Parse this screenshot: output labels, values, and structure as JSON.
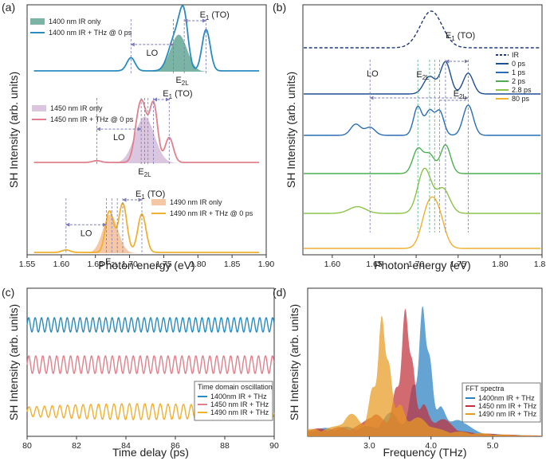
{
  "panel_labels": {
    "a": "(a)",
    "b": "(b)",
    "c": "(c)",
    "d": "(d)"
  },
  "chart_data": [
    {
      "id": "a",
      "type": "line",
      "xlabel": "Photon energy (eV)",
      "ylabel": "SH Intensity (arb. units)",
      "xlim": [
        1.55,
        1.9
      ],
      "xticks": [
        "1.55",
        "1.60",
        "1.65",
        "1.70",
        "1.75",
        "1.80",
        "1.85",
        "1.90"
      ],
      "xtick_values": [
        1.55,
        1.6,
        1.65,
        1.7,
        1.75,
        1.8,
        1.85,
        1.9
      ],
      "groups": [
        {
          "legend_fill": "1400 nm IR only",
          "legend_line": "1400 nm IR + THz @ 0 ps",
          "fill_color": "#4f9a87",
          "line_color": "#2a8bbf",
          "fill_peak": {
            "center": 1.772,
            "width": 0.022,
            "amp": 1.0
          },
          "line_peaks": [
            {
              "x": 1.702,
              "a": 0.28,
              "w": 0.006
            },
            {
              "x": 1.762,
              "a": 0.45,
              "w": 0.008
            },
            {
              "x": 1.772,
              "a": 0.55,
              "w": 0.007
            },
            {
              "x": 1.78,
              "a": 1.0,
              "w": 0.006
            },
            {
              "x": 1.812,
              "a": 0.88,
              "w": 0.006
            }
          ],
          "annotations": {
            "lo": "LO",
            "e2l": "E2L",
            "e1": "E1 (TO)"
          },
          "dashed_x": [
            1.702,
            1.764,
            1.78,
            1.812
          ],
          "lo_range": [
            1.702,
            1.764
          ],
          "e2l_range": [
            1.772,
            1.782
          ],
          "e1_range": [
            1.78,
            1.812
          ]
        },
        {
          "legend_fill": "1450 nm IR only",
          "legend_line": "1450 nm IR + THz @ 0 ps",
          "fill_color": "#cdb4d4",
          "line_color": "#e0808c",
          "fill_peak": {
            "center": 1.722,
            "width": 0.026,
            "amp": 1.0
          },
          "line_peaks": [
            {
              "x": 1.652,
              "a": 0.03,
              "w": 0.006
            },
            {
              "x": 1.712,
              "a": 0.55,
              "w": 0.006
            },
            {
              "x": 1.72,
              "a": 0.75,
              "w": 0.006
            },
            {
              "x": 1.735,
              "a": 1.0,
              "w": 0.006
            },
            {
              "x": 1.758,
              "a": 0.42,
              "w": 0.006
            }
          ],
          "annotations": {
            "lo": "LO",
            "e2l": "E2L",
            "e1": "E1 (TO)"
          },
          "dashed_x": [
            1.652,
            1.717,
            1.722,
            1.727,
            1.735,
            1.758
          ],
          "lo_range": [
            1.652,
            1.717
          ],
          "e2l_range": [
            1.717,
            1.727
          ],
          "e1_range": [
            1.735,
            1.758
          ]
        },
        {
          "legend_fill": "1490 nm IR only",
          "legend_line": "1490 nm IR + THz @ 0 ps",
          "fill_color": "#f3b487",
          "line_color": "#f0b030",
          "fill_peak": {
            "center": 1.672,
            "width": 0.02,
            "amp": 1.0
          },
          "line_peaks": [
            {
              "x": 1.607,
              "a": 0.05,
              "w": 0.006
            },
            {
              "x": 1.668,
              "a": 0.55,
              "w": 0.005
            },
            {
              "x": 1.674,
              "a": 0.45,
              "w": 0.005
            },
            {
              "x": 1.69,
              "a": 1.0,
              "w": 0.006
            },
            {
              "x": 1.718,
              "a": 0.78,
              "w": 0.006
            }
          ],
          "annotations": {
            "lo": "LO",
            "e2l": "E2L",
            "e1": "E1 (TO)"
          },
          "dashed_x": [
            1.607,
            1.666,
            1.674,
            1.682,
            1.69,
            1.718
          ],
          "lo_range": [
            1.607,
            1.666
          ],
          "e2l_range": [
            1.666,
            1.682
          ],
          "e1_range": [
            1.69,
            1.718
          ]
        }
      ]
    },
    {
      "id": "b",
      "type": "line",
      "xlabel": "Photon energy (eV)",
      "ylabel": "SH Intensity (arb. units)",
      "xlim": [
        1.565,
        1.85
      ],
      "xticks": [
        "1.60",
        "1.65",
        "1.70",
        "1.75",
        "1.80",
        "1.85"
      ],
      "xtick_values": [
        1.6,
        1.65,
        1.7,
        1.75,
        1.8,
        1.85
      ],
      "legend": [
        {
          "label": "IR",
          "color": "#1f3a7a",
          "dashed": true
        },
        {
          "label": "0 ps",
          "color": "#1f4f8f"
        },
        {
          "label": "1 ps",
          "color": "#2a6db5"
        },
        {
          "label": "2 ps",
          "color": "#4caf50"
        },
        {
          "label": "2.8 ps",
          "color": "#8bc34a"
        },
        {
          "label": "80 ps",
          "color": "#f0b030"
        }
      ],
      "series": [
        {
          "name": "IR",
          "color": "#1f3a7a",
          "dashed": true,
          "peaks": [
            {
              "x": 1.718,
              "a": 1.0,
              "w": 0.013
            }
          ]
        },
        {
          "name": "0 ps",
          "color": "#1f4f8f",
          "peaks": [
            {
              "x": 1.716,
              "a": 0.55,
              "w": 0.007
            },
            {
              "x": 1.735,
              "a": 1.0,
              "w": 0.006
            },
            {
              "x": 1.762,
              "a": 0.65,
              "w": 0.006
            }
          ]
        },
        {
          "name": "1 ps",
          "color": "#2a6db5",
          "peaks": [
            {
              "x": 1.628,
              "a": 0.35,
              "w": 0.006
            },
            {
              "x": 1.645,
              "a": 0.25,
              "w": 0.006
            },
            {
              "x": 1.702,
              "a": 0.9,
              "w": 0.005
            },
            {
              "x": 1.716,
              "a": 0.75,
              "w": 0.005
            },
            {
              "x": 1.728,
              "a": 0.75,
              "w": 0.005
            },
            {
              "x": 1.762,
              "a": 0.95,
              "w": 0.006
            }
          ]
        },
        {
          "name": "2 ps",
          "color": "#4caf50",
          "peaks": [
            {
              "x": 1.702,
              "a": 0.85,
              "w": 0.006
            },
            {
              "x": 1.716,
              "a": 0.65,
              "w": 0.006
            },
            {
              "x": 1.735,
              "a": 1.0,
              "w": 0.006
            }
          ]
        },
        {
          "name": "2.8 ps",
          "color": "#8bc34a",
          "peaks": [
            {
              "x": 1.63,
              "a": 0.15,
              "w": 0.01
            },
            {
              "x": 1.71,
              "a": 1.0,
              "w": 0.008
            },
            {
              "x": 1.732,
              "a": 0.55,
              "w": 0.008
            }
          ]
        },
        {
          "name": "80 ps",
          "color": "#f0b030",
          "peaks": [
            {
              "x": 1.714,
              "a": 1.0,
              "w": 0.008
            },
            {
              "x": 1.726,
              "a": 0.9,
              "w": 0.008
            }
          ]
        }
      ],
      "annotations": {
        "lo": "LO",
        "e2l_top": "E2L",
        "e2l_mid": "E2L",
        "e1": "E1 (TO)"
      },
      "dashed_x": [
        1.645,
        1.702,
        1.716,
        1.722,
        1.728,
        1.735,
        1.762
      ],
      "lo_range": [
        1.645,
        1.762
      ],
      "e2l_mid_range": [
        1.728,
        1.762
      ],
      "e1_range": [
        1.735,
        1.762
      ]
    },
    {
      "id": "c",
      "type": "line",
      "xlabel": "Time delay (ps)",
      "ylabel": "SH Intensity (arb. units)",
      "xlim": [
        80,
        90
      ],
      "xticks": [
        "80",
        "82",
        "84",
        "86",
        "88",
        "90"
      ],
      "xtick_values": [
        80,
        82,
        84,
        86,
        88,
        90
      ],
      "legend_title": "Time domain oscillation",
      "series": [
        {
          "name": "1400nm  IR + THz",
          "color": "#2a8bbf",
          "freq_thz": 3.85
        },
        {
          "name": "1450 nm IR + THz",
          "color": "#e0808c",
          "freq_thz": 3.55
        },
        {
          "name": "1490 nm IR + THz",
          "color": "#f0b030",
          "freq_thz": 3.2
        }
      ]
    },
    {
      "id": "d",
      "type": "area",
      "xlabel": "Frequency (THz)",
      "ylabel": "SH Intensity (arb. units)",
      "xlim": [
        2.0,
        5.8
      ],
      "xticks": [
        "3.0",
        "4.0",
        "5.0"
      ],
      "xtick_values": [
        3.0,
        4.0,
        5.0
      ],
      "legend_title": "FFT spectra",
      "series": [
        {
          "name": "1400nm  IR + THz",
          "color": "#2a7fc0",
          "peak": 3.86,
          "amp": 1.0
        },
        {
          "name": "1450 nm IR + THz",
          "color": "#c0303a",
          "peak": 3.58,
          "amp": 0.95
        },
        {
          "name": "1490 nm IR + THz",
          "color": "#e89a20",
          "peak": 3.2,
          "amp": 0.9
        }
      ]
    }
  ]
}
